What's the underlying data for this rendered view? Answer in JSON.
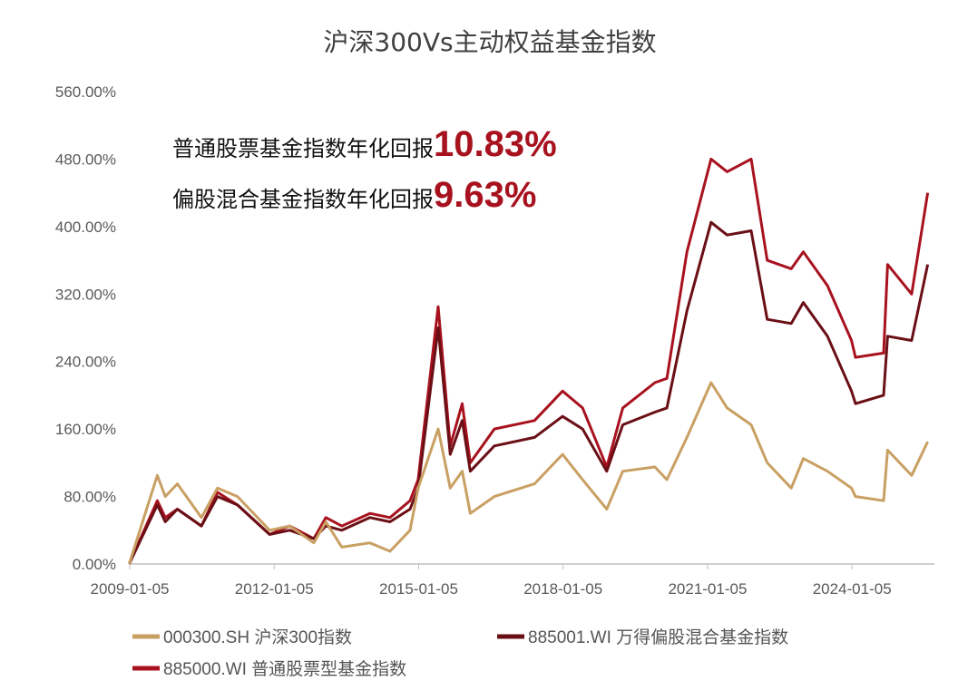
{
  "chart_data": {
    "type": "line",
    "title": "沪深300Vs主动权益基金指数",
    "ylim": [
      0,
      560
    ],
    "yticks": [
      "0.00%",
      "80.00%",
      "160.00%",
      "240.00%",
      "320.00%",
      "400.00%",
      "480.00%",
      "560.00%"
    ],
    "ytick_values": [
      0,
      80,
      160,
      240,
      320,
      400,
      480,
      560
    ],
    "xticks": [
      "2009-01-05",
      "2012-01-05",
      "2015-01-05",
      "2018-01-05",
      "2021-01-05",
      "2024-01-05"
    ],
    "xlim": [
      "2009-01-05",
      "2025-08-31"
    ],
    "grid": false,
    "legend_position": "bottom",
    "annotations": [
      {
        "label": "普通股票基金指数年化回报",
        "value": "10.83%"
      },
      {
        "label": "偏股混合基金指数年化回报",
        "value": "9.63%"
      }
    ],
    "x": [
      "2009-01",
      "2009-08",
      "2009-10",
      "2010-01",
      "2010-07",
      "2010-11",
      "2011-04",
      "2011-12",
      "2012-05",
      "2012-11",
      "2013-02",
      "2013-06",
      "2014-01",
      "2014-06",
      "2014-11",
      "2015-01",
      "2015-06",
      "2015-09",
      "2015-12",
      "2016-02",
      "2016-08",
      "2017-06",
      "2018-01",
      "2018-06",
      "2018-12",
      "2019-04",
      "2019-12",
      "2020-03",
      "2020-08",
      "2021-02",
      "2021-06",
      "2021-12",
      "2022-04",
      "2022-10",
      "2023-01",
      "2023-07",
      "2024-01",
      "2024-02",
      "2024-09",
      "2024-10",
      "2025-04",
      "2025-08"
    ],
    "series": [
      {
        "name": "000300.SH 沪深300指数",
        "color": "#C9A063",
        "values": [
          0,
          105,
          80,
          95,
          55,
          90,
          80,
          40,
          45,
          25,
          50,
          20,
          25,
          15,
          40,
          90,
          160,
          90,
          110,
          60,
          80,
          95,
          130,
          100,
          65,
          110,
          115,
          100,
          150,
          215,
          185,
          165,
          120,
          90,
          125,
          110,
          90,
          80,
          75,
          135,
          105,
          145
        ]
      },
      {
        "name": "885001.WI 万得偏股混合基金指数",
        "color": "#6B0F16",
        "values": [
          0,
          70,
          50,
          65,
          45,
          80,
          70,
          35,
          40,
          30,
          45,
          40,
          55,
          50,
          65,
          90,
          280,
          130,
          170,
          110,
          140,
          150,
          175,
          160,
          110,
          165,
          180,
          185,
          300,
          405,
          390,
          395,
          290,
          285,
          310,
          270,
          205,
          190,
          200,
          270,
          265,
          355
        ]
      },
      {
        "name": "885000.WI 普通股票型基金指数",
        "color": "#A8121F",
        "values": [
          0,
          75,
          55,
          65,
          45,
          85,
          70,
          35,
          45,
          30,
          55,
          45,
          60,
          55,
          75,
          100,
          305,
          140,
          190,
          120,
          160,
          170,
          205,
          185,
          115,
          185,
          215,
          220,
          370,
          480,
          465,
          480,
          360,
          350,
          370,
          330,
          265,
          245,
          250,
          355,
          320,
          440
        ]
      }
    ]
  }
}
